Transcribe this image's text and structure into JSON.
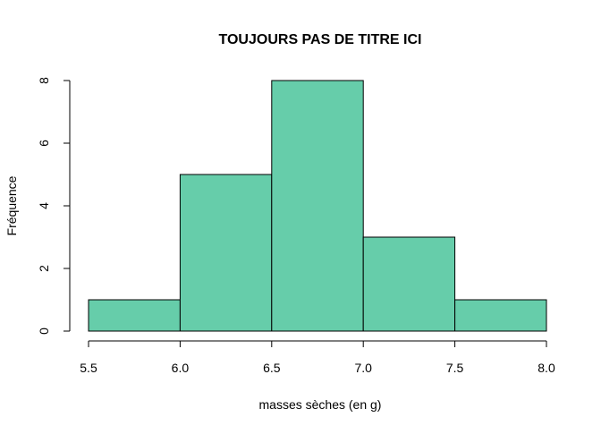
{
  "chart_data": {
    "type": "histogram",
    "title": "TOUJOURS PAS DE TITRE ICI",
    "xlabel": "masses sèches (en g)",
    "ylabel": "Fréquence",
    "bins": [
      {
        "start": 5.5,
        "end": 6.0,
        "count": 1
      },
      {
        "start": 6.0,
        "end": 6.5,
        "count": 5
      },
      {
        "start": 6.5,
        "end": 7.0,
        "count": 8
      },
      {
        "start": 7.0,
        "end": 7.5,
        "count": 3
      },
      {
        "start": 7.5,
        "end": 8.0,
        "count": 1
      }
    ],
    "xticks": [
      "5.5",
      "6.0",
      "6.5",
      "7.0",
      "7.5",
      "8.0"
    ],
    "yticks": [
      "0",
      "2",
      "4",
      "6",
      "8"
    ],
    "xlim": [
      5.5,
      8.0
    ],
    "ylim": [
      0,
      8
    ],
    "grid": false,
    "bar_color": "#66CDAA",
    "bar_edge_color": "#000000"
  }
}
